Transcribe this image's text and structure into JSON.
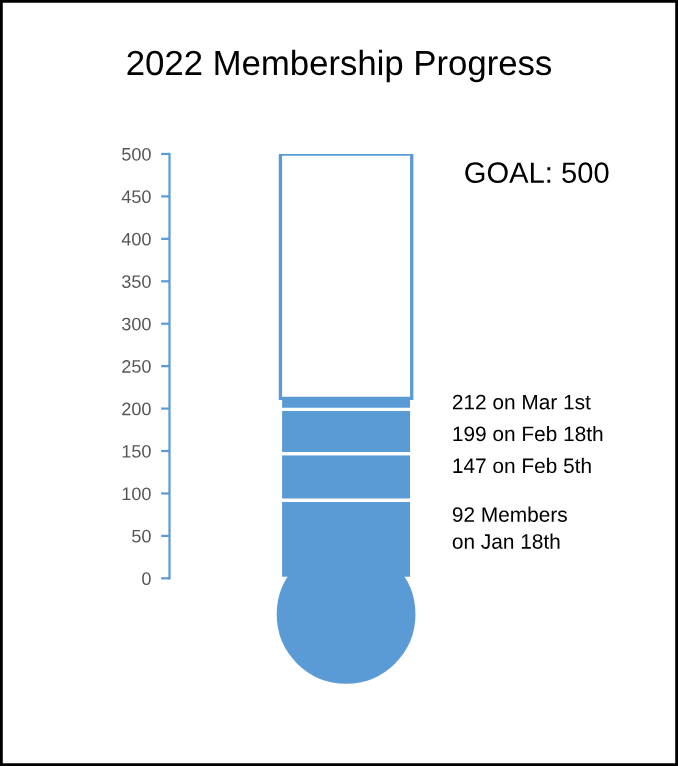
{
  "chart_data": {
    "type": "bar",
    "stacked": true,
    "title": "2022 Membership Progress",
    "categories": [
      null
    ],
    "series": [
      {
        "color": "#5b9bd5",
        "values": [
          92
        ]
      },
      {
        "color": "#5b9bd5",
        "values": [
          55
        ]
      },
      {
        "color": "#5b9bd5",
        "values": [
          52
        ]
      },
      {
        "color": "#5b9bd5",
        "values": [
          13
        ]
      },
      {
        "color": "#ffffff",
        "values": [
          288
        ]
      }
    ],
    "ylim": [
      0,
      500
    ],
    "yticks": [
      0,
      50,
      100,
      150,
      200,
      250,
      300,
      350,
      400,
      450,
      500
    ],
    "grid": false,
    "legend": false,
    "tick_labels": "y",
    "annotations": [
      "GOAL: 500",
      "212 on Mar 1st",
      "199 on Feb 18th",
      "147 on Feb 5th",
      "92 Members\non Jan 18th"
    ]
  }
}
